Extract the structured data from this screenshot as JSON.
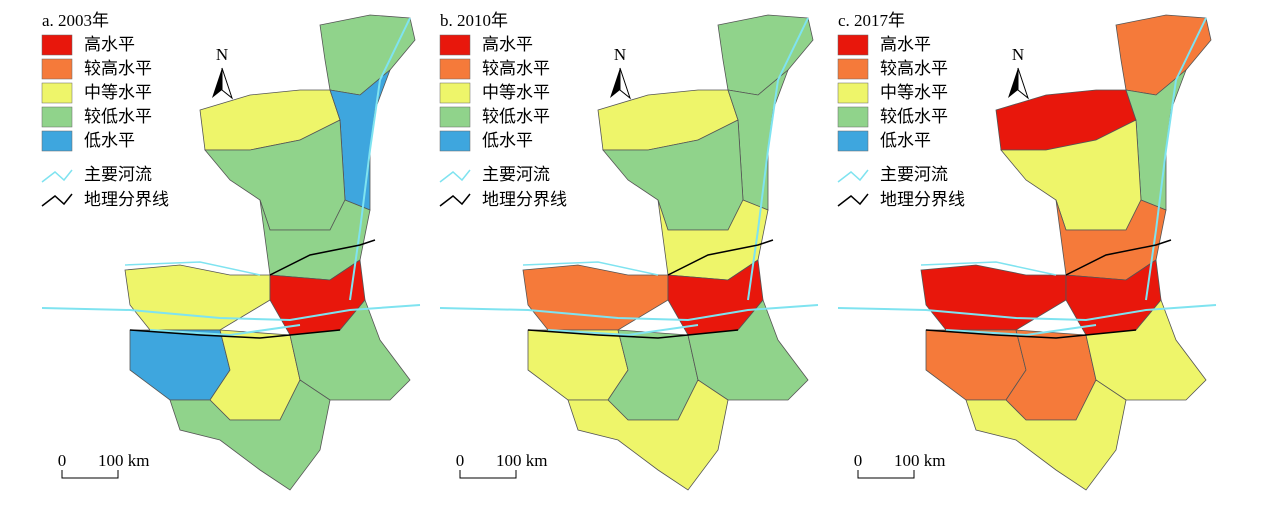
{
  "panels": [
    {
      "title": "a. 2003年"
    },
    {
      "title": "b. 2010年"
    },
    {
      "title": "c. 2017年"
    }
  ],
  "legend": [
    {
      "label": "高水平",
      "color": "#e8170c"
    },
    {
      "label": "较高水平",
      "color": "#f57a3a"
    },
    {
      "label": "中等水平",
      "color": "#eef56a"
    },
    {
      "label": "较低水平",
      "color": "#90d38b"
    },
    {
      "label": "低水平",
      "color": "#3ea6de"
    }
  ],
  "river_legend": {
    "label": "主要河流",
    "color": "#7fe3f0"
  },
  "boundary_legend": {
    "label": "地理分界线",
    "color": "#000000"
  },
  "north": "N",
  "scale": {
    "start": "0",
    "end": "100 km"
  }
}
